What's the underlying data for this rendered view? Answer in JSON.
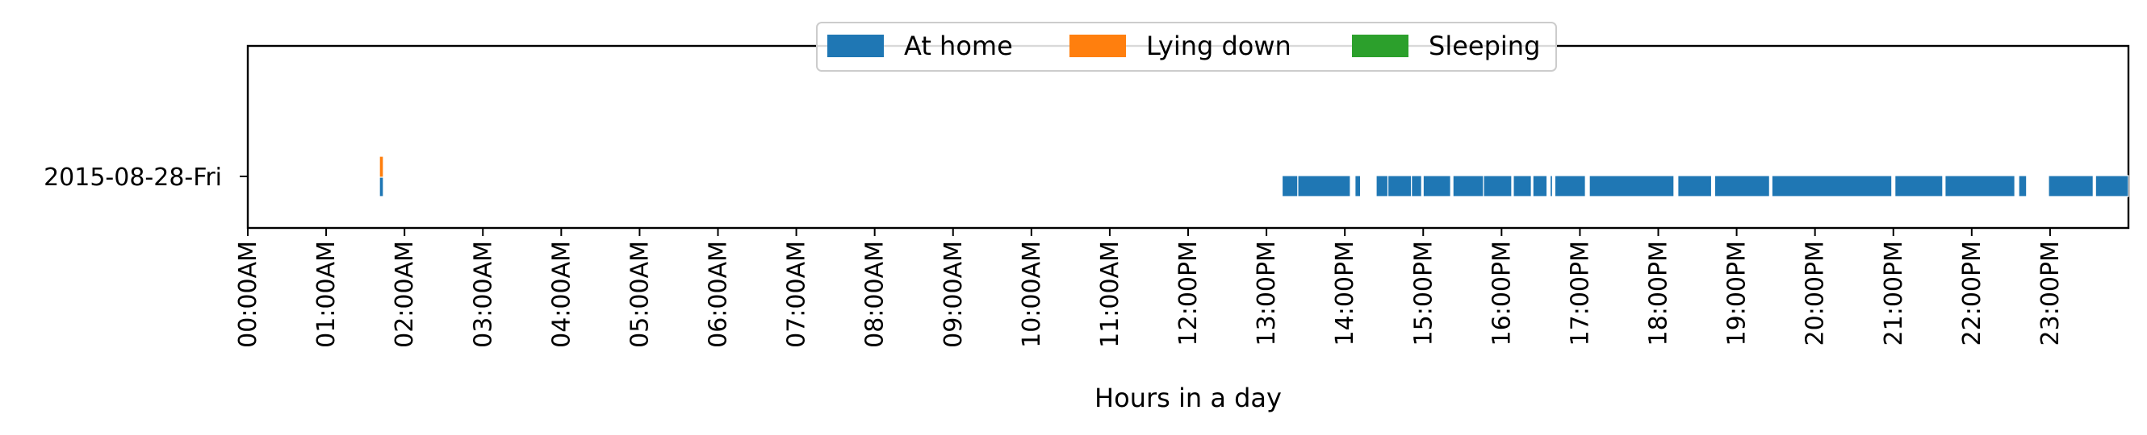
{
  "chart_data": {
    "type": "bar",
    "orientation": "horizontal",
    "title": "",
    "xlabel": "Hours in a day",
    "ylabel": "",
    "x_unit": "hours",
    "xlim": [
      0,
      24
    ],
    "x_ticks": [
      0,
      1,
      2,
      3,
      4,
      5,
      6,
      7,
      8,
      9,
      10,
      11,
      12,
      13,
      14,
      15,
      16,
      17,
      18,
      19,
      20,
      21,
      22,
      23
    ],
    "x_tick_labels": [
      "00:00AM",
      "01:00AM",
      "02:00AM",
      "03:00AM",
      "04:00AM",
      "05:00AM",
      "06:00AM",
      "07:00AM",
      "08:00AM",
      "09:00AM",
      "10:00AM",
      "11:00AM",
      "12:00PM",
      "13:00PM",
      "14:00PM",
      "15:00PM",
      "16:00PM",
      "17:00PM",
      "18:00PM",
      "19:00PM",
      "20:00PM",
      "21:00PM",
      "22:00PM",
      "23:00PM"
    ],
    "categories": [
      "2015-08-28-Fri"
    ],
    "legend_position": "upper center",
    "grid": false,
    "series": [
      {
        "name": "At home",
        "color": "#1f77b4",
        "intervals": [
          [
            1.68,
            1.73
          ],
          [
            13.2,
            13.4
          ],
          [
            13.4,
            14.07
          ],
          [
            14.13,
            14.2
          ],
          [
            14.4,
            14.55
          ],
          [
            14.55,
            14.85
          ],
          [
            14.85,
            14.98
          ],
          [
            15.0,
            15.35
          ],
          [
            15.38,
            15.77
          ],
          [
            15.77,
            16.13
          ],
          [
            16.15,
            16.38
          ],
          [
            16.4,
            16.58
          ],
          [
            16.62,
            16.65
          ],
          [
            16.68,
            17.07
          ],
          [
            17.12,
            18.2
          ],
          [
            18.25,
            18.68
          ],
          [
            18.72,
            19.42
          ],
          [
            19.45,
            20.98
          ],
          [
            21.02,
            21.63
          ],
          [
            21.66,
            22.55
          ],
          [
            22.6,
            22.7
          ],
          [
            22.98,
            23.55
          ],
          [
            23.58,
            24.0
          ]
        ]
      },
      {
        "name": "Lying down",
        "color": "#ff7f0e",
        "intervals": [
          [
            1.68,
            1.73
          ]
        ]
      },
      {
        "name": "Sleeping",
        "color": "#2ca02c",
        "intervals": []
      }
    ]
  }
}
